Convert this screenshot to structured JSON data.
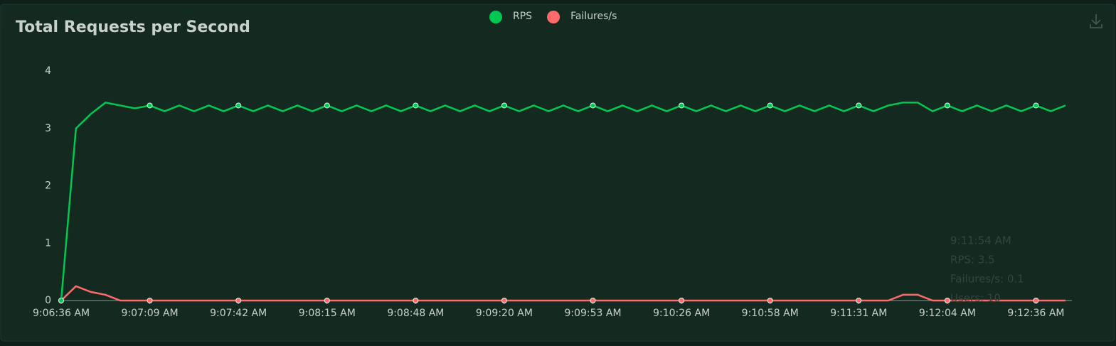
{
  "chart_data": {
    "type": "line",
    "title": "Total Requests per Second",
    "categories": [
      "9:06:36 AM",
      null,
      null,
      null,
      null,
      null,
      "9:07:09 AM",
      null,
      null,
      null,
      null,
      null,
      "9:07:42 AM",
      null,
      null,
      null,
      null,
      null,
      "9:08:15 AM",
      null,
      null,
      null,
      null,
      null,
      "9:08:48 AM",
      null,
      null,
      null,
      null,
      null,
      "9:09:20 AM",
      null,
      null,
      null,
      null,
      null,
      "9:09:53 AM",
      null,
      null,
      null,
      null,
      null,
      "9:10:26 AM",
      null,
      null,
      null,
      null,
      null,
      "9:10:58 AM",
      null,
      null,
      null,
      null,
      null,
      "9:11:31 AM",
      null,
      null,
      null,
      null,
      null,
      "9:12:04 AM",
      null,
      null,
      null,
      null,
      null,
      "9:12:36 AM",
      null,
      null
    ],
    "series": [
      {
        "name": "RPS",
        "color": "#00c853",
        "values": [
          0,
          3.0,
          3.25,
          3.45,
          3.4,
          3.35,
          3.4,
          3.3,
          3.4,
          3.3,
          3.4,
          3.3,
          3.4,
          3.3,
          3.4,
          3.3,
          3.4,
          3.3,
          3.4,
          3.3,
          3.4,
          3.3,
          3.4,
          3.3,
          3.4,
          3.3,
          3.4,
          3.3,
          3.4,
          3.3,
          3.4,
          3.3,
          3.4,
          3.3,
          3.4,
          3.3,
          3.4,
          3.3,
          3.4,
          3.3,
          3.4,
          3.3,
          3.4,
          3.3,
          3.4,
          3.3,
          3.4,
          3.3,
          3.4,
          3.3,
          3.4,
          3.3,
          3.4,
          3.3,
          3.4,
          3.3,
          3.4,
          3.45,
          3.45,
          3.3,
          3.4,
          3.3,
          3.4,
          3.3,
          3.4,
          3.3,
          3.4,
          3.3,
          3.4
        ]
      },
      {
        "name": "Failures/s",
        "color": "#ff6b6b",
        "values": [
          0,
          0.25,
          0.15,
          0.1,
          0,
          0,
          0,
          0,
          0,
          0,
          0,
          0,
          0,
          0,
          0,
          0,
          0,
          0,
          0,
          0,
          0,
          0,
          0,
          0,
          0,
          0,
          0,
          0,
          0,
          0,
          0,
          0,
          0,
          0,
          0,
          0,
          0,
          0,
          0,
          0,
          0,
          0,
          0,
          0,
          0,
          0,
          0,
          0,
          0,
          0,
          0,
          0,
          0,
          0,
          0,
          0,
          0,
          0.1,
          0.1,
          0,
          0,
          0,
          0,
          0,
          0,
          0,
          0,
          0,
          0
        ]
      }
    ],
    "ylim": [
      0,
      4
    ],
    "yticks": [
      0,
      1,
      2,
      3,
      4
    ],
    "tooltip": [
      "9:11:54 AM",
      "RPS: 3.5",
      "Failures/s: 0.1",
      "Users: 10"
    ]
  }
}
